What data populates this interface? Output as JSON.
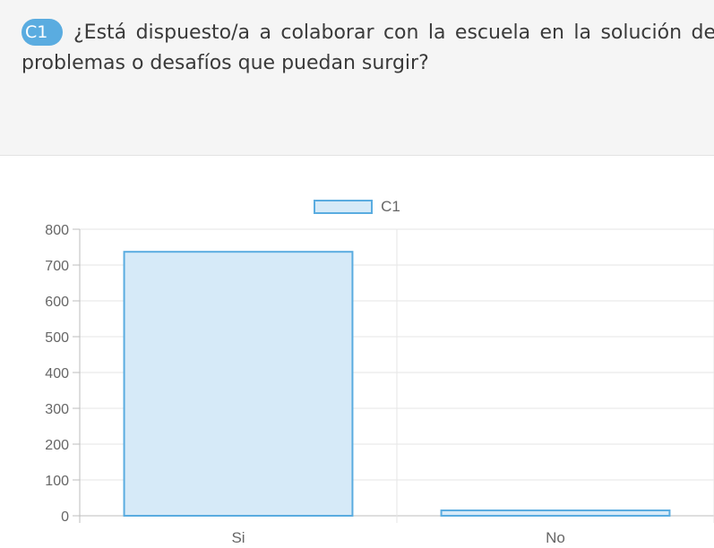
{
  "question": {
    "badge": "C1",
    "text": "¿Está dispuesto/a a colaborar con la escuela en la solución de problemas o desafíos que puedan surgir?"
  },
  "colors": {
    "bar_fill": "#d6eaf8",
    "bar_border": "#5aace0",
    "badge": "#5aace0"
  },
  "chart_data": {
    "type": "bar",
    "categories": [
      "Si",
      "No"
    ],
    "series": [
      {
        "name": "C1",
        "values": [
          737,
          15
        ]
      }
    ],
    "ylim": [
      0,
      800
    ],
    "yticks": [
      0,
      100,
      200,
      300,
      400,
      500,
      600,
      700,
      800
    ],
    "legend": "top-center",
    "grid": true
  }
}
